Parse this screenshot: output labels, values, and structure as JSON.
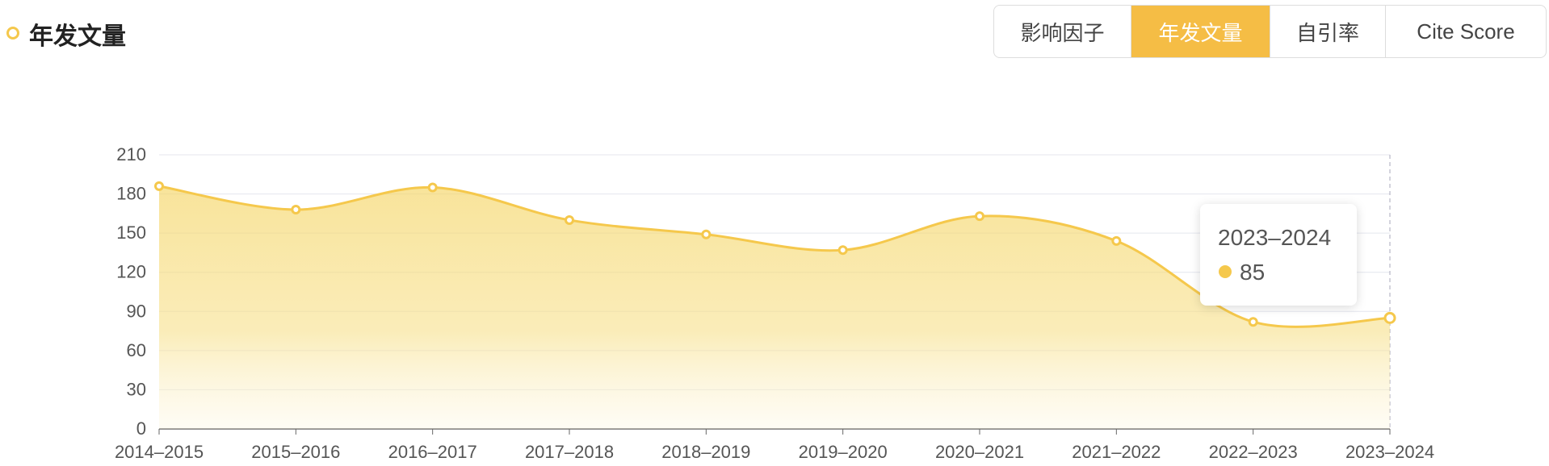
{
  "header": {
    "title": "年发文量",
    "tabs": [
      "影响因子",
      "年发文量",
      "自引率",
      "Cite Score"
    ],
    "active_tab": 1
  },
  "chart_data": {
    "type": "line",
    "categories": [
      "2014–2015",
      "2015–2016",
      "2016–2017",
      "2017–2018",
      "2018–2019",
      "2019–2020",
      "2020–2021",
      "2021–2022",
      "2022–2023",
      "2023–2024"
    ],
    "series": [
      {
        "name": "年发文量",
        "color": "#f5c84c",
        "values": [
          186,
          168,
          185,
          160,
          149,
          137,
          163,
          144,
          82,
          85
        ]
      }
    ],
    "ylim": [
      0,
      210
    ],
    "yticks": [
      0,
      30,
      60,
      90,
      120,
      150,
      180,
      210
    ],
    "grid": true,
    "smooth": true,
    "area": true,
    "tooltip": {
      "index": 9
    }
  }
}
